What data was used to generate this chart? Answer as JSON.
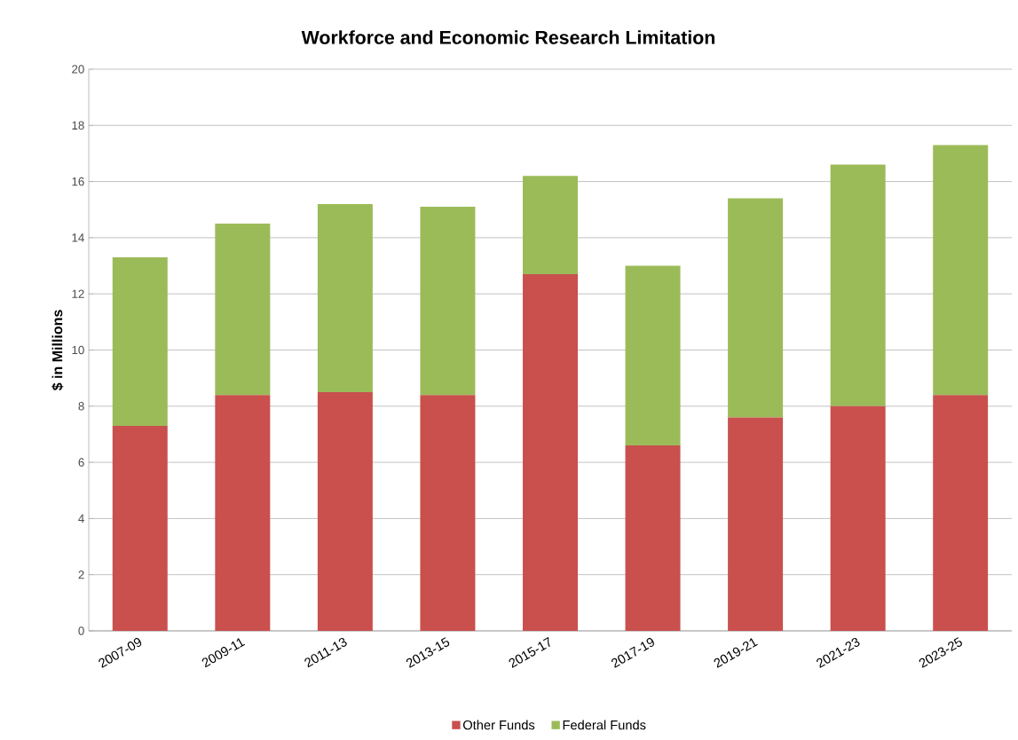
{
  "chart_data": {
    "type": "bar",
    "title": "Workforce and Economic Research Limitation",
    "ylabel": "$ in Millions",
    "categories": [
      "2007-09",
      "2009-11",
      "2011-13",
      "2013-15",
      "2015-17",
      "2017-19",
      "2019-21",
      "2021-23",
      "2023-25"
    ],
    "series": [
      {
        "name": "Other Funds",
        "color": "#c9504d",
        "values": [
          7.3,
          8.4,
          8.5,
          8.4,
          12.7,
          6.6,
          7.6,
          8.0,
          8.4
        ]
      },
      {
        "name": "Federal Funds",
        "color": "#9bbb59",
        "values": [
          6.0,
          6.1,
          6.7,
          6.7,
          3.5,
          6.4,
          7.8,
          8.6,
          8.9
        ]
      }
    ],
    "stacked": true,
    "ylim": [
      0,
      20
    ],
    "yticks": [
      0,
      2,
      4,
      6,
      8,
      10,
      12,
      14,
      16,
      18,
      20
    ],
    "grid": "y",
    "legend": "bottom"
  }
}
